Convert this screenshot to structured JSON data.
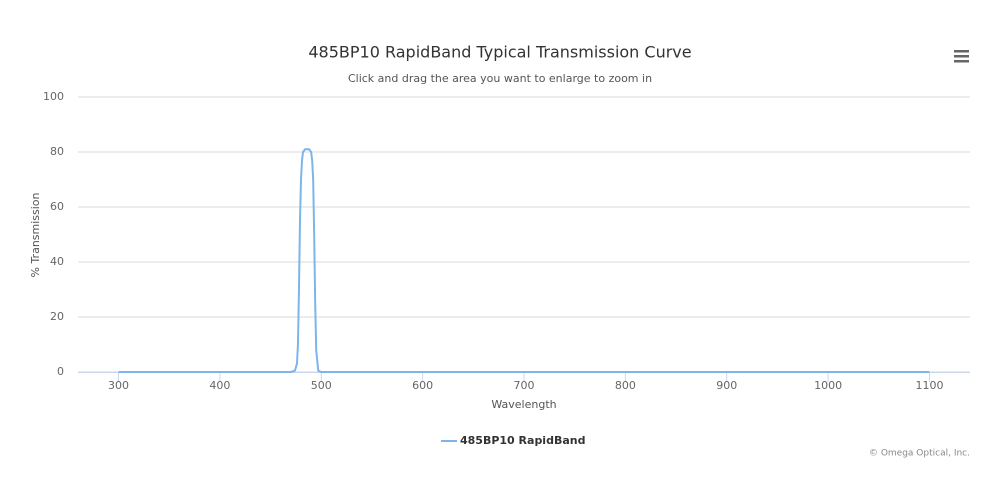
{
  "chart_data": {
    "type": "line",
    "title": "485BP10 RapidBand Typical Transmission Curve",
    "subtitle": "Click and drag the area you want to enlarge to zoom in",
    "x_label": "Wavelength",
    "y_label": "% Transmission",
    "credits": "© Omega Optical, Inc.",
    "xlim": [
      260,
      1140
    ],
    "ylim": [
      0,
      100
    ],
    "xticks": [
      300,
      400,
      500,
      600,
      700,
      800,
      900,
      1000,
      1100
    ],
    "yticks": [
      0,
      20,
      40,
      60,
      80,
      100
    ],
    "grid": true,
    "legend": "bottom",
    "series": [
      {
        "name": "485BP10 RapidBand",
        "color": "#7cb5ec",
        "x": [
          300,
          470,
          474,
          476,
          477,
          478,
          479,
          480,
          481,
          482,
          484,
          486,
          488,
          490,
          491,
          492,
          493,
          494,
          495,
          497,
          500,
          1100
        ],
        "values": [
          0,
          0,
          0.5,
          3,
          10,
          30,
          55,
          70,
          77,
          80,
          81,
          81,
          81,
          80,
          77,
          70,
          50,
          25,
          8,
          0.5,
          0,
          0
        ]
      }
    ]
  }
}
